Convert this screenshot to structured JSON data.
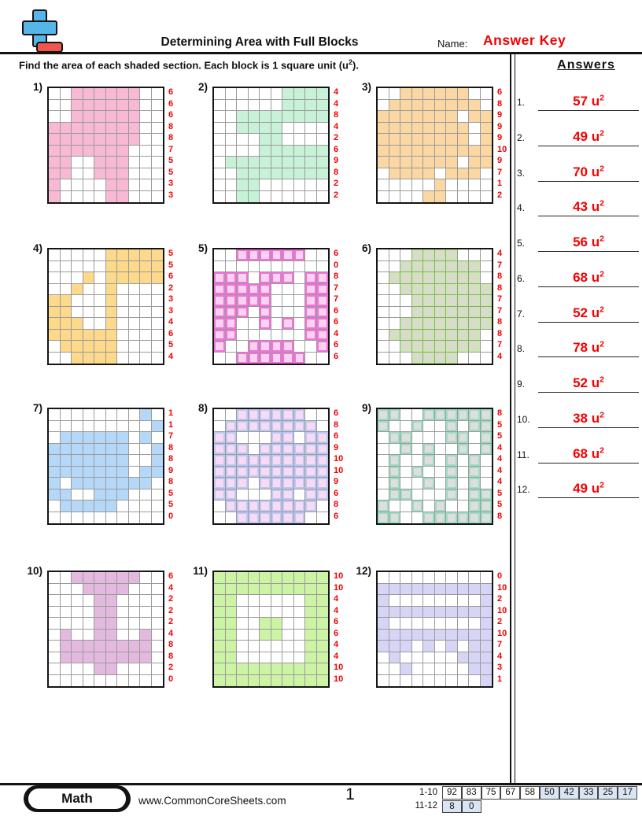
{
  "header": {
    "title": "Determining Area with Full Blocks",
    "name_label": "Name:",
    "name_value": "Answer Key"
  },
  "instruction": {
    "text": "Find the area of each shaded section. Each block is 1 square unit (u",
    "sup": "2",
    "tail": ")."
  },
  "answers": {
    "heading": "Answers",
    "unit": "u",
    "sup": "2",
    "items": [
      {
        "n": "1.",
        "value": "57"
      },
      {
        "n": "2.",
        "value": "49"
      },
      {
        "n": "3.",
        "value": "70"
      },
      {
        "n": "4.",
        "value": "43"
      },
      {
        "n": "5.",
        "value": "56"
      },
      {
        "n": "6.",
        "value": "68"
      },
      {
        "n": "7.",
        "value": "52"
      },
      {
        "n": "8.",
        "value": "78"
      },
      {
        "n": "9.",
        "value": "52"
      },
      {
        "n": "10.",
        "value": "38"
      },
      {
        "n": "11.",
        "value": "68"
      },
      {
        "n": "12.",
        "value": "49"
      }
    ]
  },
  "problems": [
    {
      "label": "1)",
      "color": "#f8b9d4",
      "inner": null,
      "row_counts": [
        6,
        6,
        6,
        8,
        8,
        7,
        5,
        5,
        3,
        3
      ],
      "rows": [
        "..######..",
        "..######..",
        "..######..",
        "########..",
        "########..",
        "#######...",
        "##..###...",
        "##..###...",
        "#....##...",
        "#....##..."
      ]
    },
    {
      "label": "2)",
      "color": "#c7f2d8",
      "inner": null,
      "row_counts": [
        4,
        4,
        8,
        4,
        2,
        6,
        9,
        8,
        2,
        2
      ],
      "rows": [
        "......####",
        "......####",
        "..########",
        "..####....",
        "....##....",
        "....######",
        ".#########",
        "..########",
        "..##......",
        "..##......"
      ]
    },
    {
      "label": "3)",
      "color": "#fbd7a4",
      "inner": null,
      "row_counts": [
        6,
        8,
        9,
        9,
        9,
        10,
        9,
        7,
        1,
        2
      ],
      "rows": [
        "..######..",
        ".########.",
        "#######.##",
        "########.#",
        "########.#",
        "##########",
        "#######.##",
        ".####.###.",
        ".....#....",
        "....##...."
      ]
    },
    {
      "label": "4)",
      "color": "#fcd98b",
      "inner": null,
      "row_counts": [
        5,
        5,
        6,
        2,
        3,
        3,
        4,
        6,
        5,
        4
      ],
      "rows": [
        ".....#####",
        ".....#####",
        "...#.#####",
        "..#..#....",
        "##...#....",
        "##...#....",
        "###..#....",
        "######....",
        ".#####....",
        "..####...."
      ]
    },
    {
      "label": "5)",
      "color": "#fbd2ef",
      "inner": "#f173d9",
      "row_counts": [
        6,
        0,
        8,
        7,
        7,
        6,
        6,
        4,
        6,
        6
      ],
      "rows": [
        "..######..",
        "..........",
        "###.###.##",
        "#####...##",
        "#####...##",
        "###.#...##",
        "##..#.#.##",
        "##......##",
        "#..####..#",
        "..######.."
      ]
    },
    {
      "label": "6)",
      "color": "#d8dbce",
      "inner": "#c9e9a6",
      "row_counts": [
        4,
        7,
        8,
        8,
        7,
        7,
        8,
        8,
        7,
        4
      ],
      "rows": [
        "...####...",
        "..#######.",
        ".########.",
        "..########",
        "...#######",
        "...#######",
        "..########",
        ".########.",
        "..#######.",
        "...####..."
      ]
    },
    {
      "label": "7)",
      "color": "#b5d8f8",
      "inner": null,
      "row_counts": [
        1,
        1,
        7,
        8,
        8,
        9,
        8,
        5,
        5,
        0
      ],
      "rows": [
        "........#.",
        ".........#",
        ".######.#.",
        "#######..#",
        "#######..#",
        "#######.##",
        "#.#######.",
        "##..###...",
        ".#####....",
        ".........."
      ]
    },
    {
      "label": "8)",
      "color": "#f8daf5",
      "inner": "#bdc9f3",
      "row_counts": [
        6,
        8,
        6,
        9,
        10,
        10,
        9,
        6,
        8,
        6
      ],
      "rows": [
        "..######..",
        ".########.",
        "##...##.##",
        "###.######",
        "##########",
        "##########",
        "###.######",
        "##...##.##",
        ".########.",
        "..######.."
      ]
    },
    {
      "label": "9)",
      "color": "#dedede",
      "inner": "#9edcc4",
      "row_counts": [
        8,
        5,
        5,
        4,
        4,
        4,
        4,
        5,
        5,
        8
      ],
      "rows": [
        "##..######",
        "#..#..#.##",
        ".##...##.#",
        "..#.#..#.#",
        ".#..#.#.#.",
        ".#.#..#.#.",
        ".#..#.#.#.",
        ".##...#.##",
        "#..#.#..##",
        "##..######"
      ]
    },
    {
      "label": "10)",
      "color": "#e4b9e0",
      "inner": null,
      "row_counts": [
        6,
        4,
        2,
        2,
        2,
        4,
        8,
        8,
        2,
        0
      ],
      "rows": [
        "..######..",
        "...####...",
        "....##....",
        "....##....",
        "....##....",
        ".#..##..#.",
        ".########.",
        ".########.",
        "....##....",
        ".........."
      ]
    },
    {
      "label": "11)",
      "color": "#cdf4a5",
      "inner": null,
      "row_counts": [
        10,
        10,
        4,
        4,
        6,
        6,
        4,
        4,
        10,
        10
      ],
      "rows": [
        "##########",
        "##########",
        "##......##",
        "##......##",
        "##..##..##",
        "##..##..##",
        "##......##",
        "##......##",
        "##########",
        "##########"
      ]
    },
    {
      "label": "12)",
      "color": "#d7d5f6",
      "inner": null,
      "row_counts": [
        0,
        10,
        2,
        10,
        2,
        10,
        7,
        4,
        3,
        1
      ],
      "rows": [
        "..........",
        "##########",
        "#........#",
        "##########",
        "#........#",
        "##########",
        "###.#.#.##",
        ".#.....###",
        "..#.....##",
        ".........#"
      ]
    }
  ],
  "footer": {
    "brand": "Math",
    "url": "www.CommonCoreSheets.com",
    "page": "1",
    "highlight": "#d9e5f3",
    "score_rows": [
      {
        "label": "1-10",
        "cells": [
          {
            "v": "92",
            "hl": false
          },
          {
            "v": "83",
            "hl": false
          },
          {
            "v": "75",
            "hl": false
          },
          {
            "v": "67",
            "hl": false
          },
          {
            "v": "58",
            "hl": false
          },
          {
            "v": "50",
            "hl": true
          },
          {
            "v": "42",
            "hl": true
          },
          {
            "v": "33",
            "hl": true
          },
          {
            "v": "25",
            "hl": true
          },
          {
            "v": "17",
            "hl": true
          }
        ]
      },
      {
        "label": "11-12",
        "cells": [
          {
            "v": "8",
            "hl": true
          },
          {
            "v": "0",
            "hl": true
          }
        ]
      }
    ]
  }
}
